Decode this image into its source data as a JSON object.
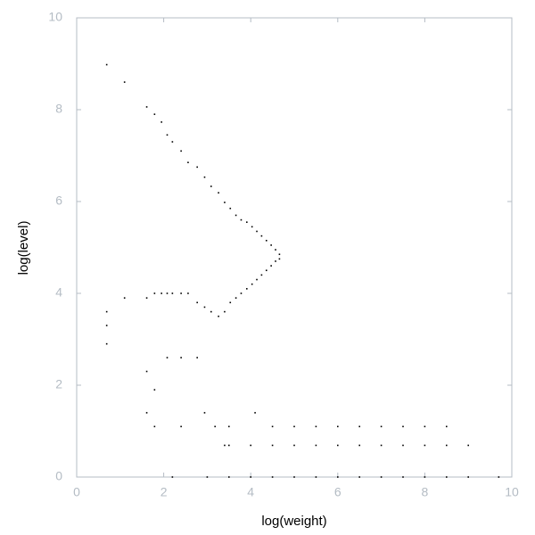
{
  "chart_data": {
    "type": "scatter",
    "x_label": "log(weight)",
    "y_label": "log(level)",
    "xlim": [
      0,
      10
    ],
    "ylim": [
      0,
      10
    ],
    "xticks": [
      0,
      2,
      4,
      6,
      8,
      10
    ],
    "yticks": [
      0,
      2,
      4,
      6,
      8,
      10
    ],
    "color": "#000000",
    "x": [
      0.69,
      1.1,
      1.61,
      1.79,
      1.95,
      2.08,
      2.2,
      2.4,
      2.56,
      2.77,
      2.94,
      3.09,
      3.26,
      3.4,
      3.53,
      3.66,
      3.78,
      3.91,
      4.03,
      4.14,
      4.25,
      4.36,
      4.47,
      4.57,
      4.66,
      0.69,
      1.1,
      1.61,
      1.79,
      1.95,
      2.08,
      2.2,
      2.4,
      2.56,
      2.77,
      2.94,
      3.09,
      3.26,
      3.4,
      3.53,
      3.66,
      3.78,
      3.91,
      4.03,
      4.14,
      4.25,
      4.36,
      4.47,
      4.57,
      4.66,
      0.69,
      0.69,
      1.61,
      1.61,
      1.79,
      1.79,
      2.08,
      2.4,
      2.4,
      2.77,
      2.94,
      3.18,
      3.4,
      4.1,
      3.5,
      4.5,
      5.0,
      5.5,
      6.0,
      6.5,
      7.0,
      7.5,
      8.0,
      8.5,
      3.5,
      4.0,
      4.5,
      5.0,
      5.5,
      6.0,
      6.5,
      7.0,
      7.5,
      8.0,
      8.5,
      9.0,
      2.2,
      3.0,
      3.5,
      4.0,
      4.5,
      5.0,
      5.5,
      6.0,
      6.5,
      7.0,
      7.5,
      8.0,
      8.5,
      9.0,
      9.7
    ],
    "y": [
      8.98,
      8.6,
      8.06,
      7.9,
      7.73,
      7.45,
      7.3,
      7.1,
      6.85,
      6.75,
      6.53,
      6.33,
      6.19,
      5.98,
      5.85,
      5.7,
      5.6,
      5.55,
      5.45,
      5.35,
      5.25,
      5.15,
      5.05,
      4.95,
      4.85,
      3.6,
      3.9,
      3.9,
      4.0,
      4.0,
      4.0,
      4.0,
      4.0,
      4.0,
      3.8,
      3.7,
      3.6,
      3.5,
      3.6,
      3.8,
      3.9,
      4.0,
      4.1,
      4.2,
      4.3,
      4.4,
      4.5,
      4.6,
      4.7,
      4.75,
      3.3,
      2.9,
      2.3,
      1.4,
      1.9,
      1.1,
      2.6,
      2.6,
      1.1,
      2.6,
      1.4,
      1.1,
      0.69,
      1.4,
      1.1,
      1.1,
      1.1,
      1.1,
      1.1,
      1.1,
      1.1,
      1.1,
      1.1,
      1.1,
      0.69,
      0.69,
      0.69,
      0.69,
      0.69,
      0.69,
      0.69,
      0.69,
      0.69,
      0.69,
      0.69,
      0.69,
      0,
      0,
      0,
      0,
      0,
      0,
      0,
      0,
      0,
      0,
      0,
      0,
      0,
      0,
      0
    ]
  }
}
